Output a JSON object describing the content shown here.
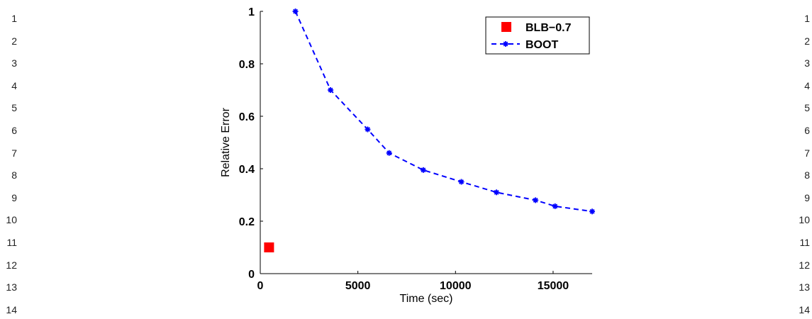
{
  "line_numbers": [
    "1",
    "2",
    "3",
    "4",
    "5",
    "6",
    "7",
    "8",
    "9",
    "10",
    "11",
    "12",
    "13",
    "14"
  ],
  "chart_data": {
    "type": "line",
    "xlabel": "Time (sec)",
    "ylabel": "Relative Error",
    "xlim": [
      0,
      17000
    ],
    "ylim": [
      0,
      1
    ],
    "xticks": [
      0,
      5000,
      10000,
      15000
    ],
    "xtick_labels": [
      "0",
      "5000",
      "10000",
      "15000"
    ],
    "yticks": [
      0,
      0.2,
      0.4,
      0.6,
      0.8,
      1
    ],
    "ytick_labels": [
      "0",
      "0.2",
      "0.4",
      "0.6",
      "0.8",
      "1"
    ],
    "grid": false,
    "legend_position": "top-right",
    "series": [
      {
        "name": "BLB−0.7",
        "style": "marker-only",
        "marker": "square",
        "color": "#ff0000",
        "x": [
          450
        ],
        "y": [
          0.1
        ]
      },
      {
        "name": "BOOT",
        "style": "dashed-line",
        "marker": "star",
        "color": "#0000ff",
        "x": [
          1800,
          3600,
          5500,
          6600,
          8350,
          10300,
          12100,
          14100,
          15100,
          17000
        ],
        "y": [
          1.0,
          0.7,
          0.55,
          0.46,
          0.395,
          0.35,
          0.31,
          0.28,
          0.257,
          0.237
        ]
      }
    ]
  }
}
